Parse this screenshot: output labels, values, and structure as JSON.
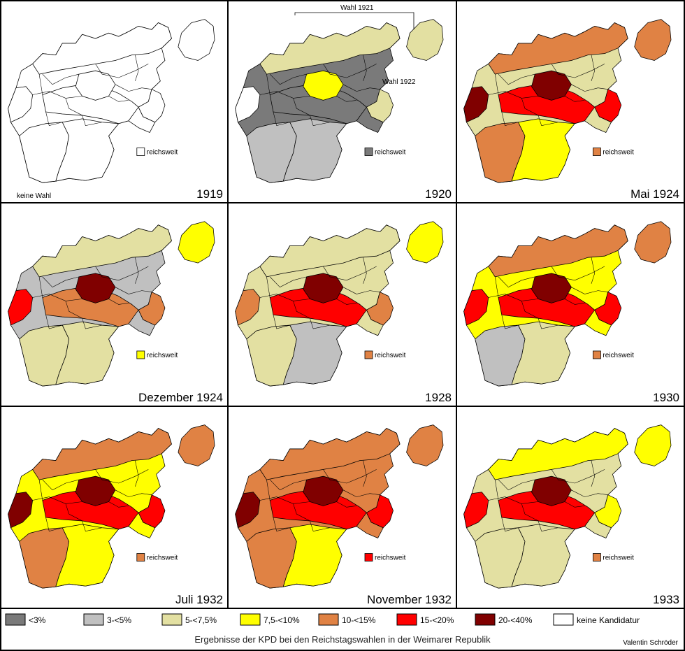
{
  "title": "Ergebnisse der KPD bei den Reichstagswahlen in der Weimarer Republik",
  "credit": "Valentin Schröder",
  "reichsweit_label": "reichsweit",
  "colors": {
    "lt3": "#7a7a7a",
    "b3_5": "#c0c0c0",
    "b5_7": "#e3e0a2",
    "b7_10": "#ffff00",
    "b10_15": "#e08244",
    "b15_20": "#ff0000",
    "b20_40": "#800000",
    "none": "#ffffff"
  },
  "legend": [
    {
      "key": "lt3",
      "label": "<3%"
    },
    {
      "key": "b3_5",
      "label": "3-<5%"
    },
    {
      "key": "b5_7",
      "label": "5-<7,5%"
    },
    {
      "key": "b7_10",
      "label": "7,5-<10%"
    },
    {
      "key": "b10_15",
      "label": "10-<15%"
    },
    {
      "key": "b15_20",
      "label": "15-<20%"
    },
    {
      "key": "b20_40",
      "label": "20-<40%"
    },
    {
      "key": "none",
      "label": "keine Kandidatur"
    }
  ],
  "maps": [
    {
      "label": "1919",
      "reich": "none",
      "note": "keine Wahl",
      "main": "none",
      "north": "none",
      "west": "none",
      "center": "none",
      "south": "none",
      "bavaria": "none",
      "silesia": "none",
      "ep": "none",
      "core": "none"
    },
    {
      "label": "1920",
      "reich": "lt3",
      "note_ep": "Wahl 1921",
      "note_sil": "Wahl 1922",
      "main": "lt3",
      "north": "b5_7",
      "west": "none",
      "center": "lt3",
      "south": "b3_5",
      "bavaria": "b3_5",
      "silesia": "b5_7",
      "ep": "b5_7",
      "core": "b7_10"
    },
    {
      "label": "Mai 1924",
      "reich": "b10_15",
      "main": "b5_7",
      "north": "b10_15",
      "west": "b20_40",
      "center": "b15_20",
      "south": "b10_15",
      "bavaria": "b7_10",
      "silesia": "b15_20",
      "ep": "b10_15",
      "core": "b20_40"
    },
    {
      "label": "Dezember 1924",
      "reich": "b7_10",
      "main": "b3_5",
      "north": "b5_7",
      "west": "b15_20",
      "center": "b10_15",
      "south": "b5_7",
      "bavaria": "b5_7",
      "silesia": "b10_15",
      "ep": "b7_10",
      "core": "b20_40"
    },
    {
      "label": "1928",
      "reich": "b10_15",
      "main": "b5_7",
      "north": "b5_7",
      "west": "b10_15",
      "center": "b15_20",
      "south": "b5_7",
      "bavaria": "b3_5",
      "silesia": "b10_15",
      "ep": "b7_10",
      "core": "b20_40"
    },
    {
      "label": "1930",
      "reich": "b10_15",
      "main": "b7_10",
      "north": "b10_15",
      "west": "b15_20",
      "center": "b15_20",
      "south": "b3_5",
      "bavaria": "b5_7",
      "silesia": "b15_20",
      "ep": "b10_15",
      "core": "b20_40"
    },
    {
      "label": "Juli 1932",
      "reich": "b10_15",
      "main": "b7_10",
      "north": "b10_15",
      "west": "b20_40",
      "center": "b15_20",
      "south": "b10_15",
      "bavaria": "b7_10",
      "silesia": "b15_20",
      "ep": "b10_15",
      "core": "b20_40"
    },
    {
      "label": "November 1932",
      "reich": "b15_20",
      "main": "b10_15",
      "north": "b10_15",
      "west": "b20_40",
      "center": "b15_20",
      "south": "b10_15",
      "bavaria": "b7_10",
      "silesia": "b15_20",
      "ep": "b10_15",
      "core": "b20_40"
    },
    {
      "label": "1933",
      "reich": "b10_15",
      "main": "b5_7",
      "north": "b7_10",
      "west": "b15_20",
      "center": "b15_20",
      "south": "b5_7",
      "bavaria": "b5_7",
      "silesia": "b7_10",
      "ep": "b7_10",
      "core": "b20_40"
    }
  ]
}
